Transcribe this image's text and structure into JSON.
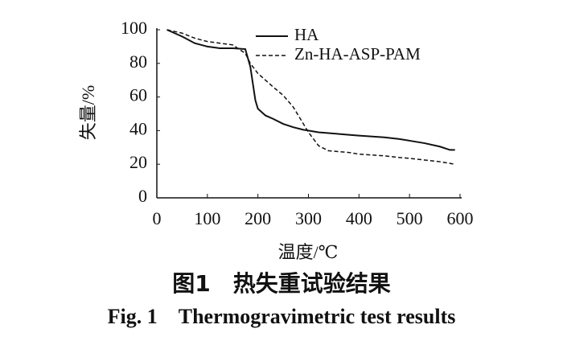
{
  "chart_data": {
    "type": "line",
    "xlabel": "温度/℃",
    "ylabel": "失量/%",
    "caption_cn": "图1　热失重试验结果",
    "caption_en": "Fig. 1　Thermogravimetric test results",
    "x": [
      20,
      50,
      75,
      100,
      125,
      150,
      175,
      185,
      195,
      200,
      215,
      230,
      250,
      270,
      290,
      300,
      320,
      340,
      380,
      400,
      450,
      480,
      500,
      530,
      560,
      580,
      590
    ],
    "series": [
      {
        "name": "HA",
        "color": "#111111",
        "dash": false,
        "values": [
          100,
          96,
          92,
          90,
          89,
          89,
          88.5,
          78,
          58,
          53,
          49,
          47,
          44,
          42,
          40.5,
          40,
          39,
          38.5,
          37.5,
          37,
          36,
          35,
          34,
          32.5,
          30.5,
          28.5,
          28.5
        ]
      },
      {
        "name": "Zn-HA-ASP-PAM",
        "color": "#111111",
        "dash": true,
        "values": [
          100,
          98,
          95,
          93,
          92,
          91,
          86,
          80,
          76,
          74,
          70,
          66,
          61,
          54,
          44,
          39,
          31,
          28,
          27,
          26,
          25,
          24,
          23.5,
          22.5,
          21.5,
          20.5,
          20
        ]
      }
    ],
    "xlim": [
      0,
      600
    ],
    "xticks": [
      0,
      100,
      200,
      300,
      400,
      500,
      600
    ],
    "ylim": [
      0,
      100
    ],
    "yticks": [
      0,
      20,
      40,
      60,
      80,
      100
    ]
  }
}
